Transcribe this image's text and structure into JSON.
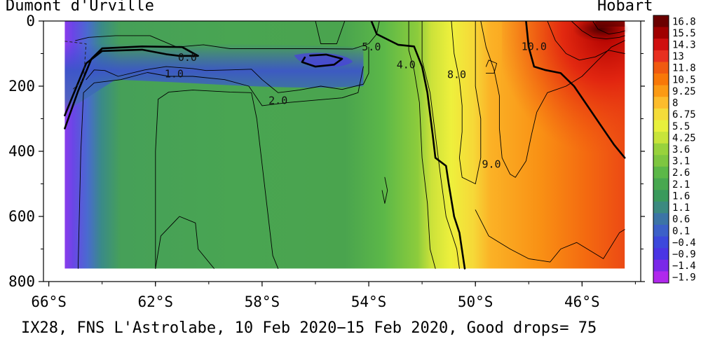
{
  "header": {
    "left_label": "Dumont d'Urville",
    "right_label": "Hobart"
  },
  "footer": {
    "caption": "IX28, FNS L'Astrolabe, 10 Feb 2020−15 Feb 2020, Good drops= 75"
  },
  "chart_data": {
    "type": "heatmap",
    "xlabel": "",
    "ylabel": "",
    "x_ticks": [
      "66°S",
      "62°S",
      "58°S",
      "54°S",
      "50°S",
      "46°S"
    ],
    "x_tick_values": [
      -66,
      -62,
      -58,
      -54,
      -50,
      -46
    ],
    "x_range": [
      -66.2,
      -43.8
    ],
    "y_ticks": [
      "0",
      "200",
      "400",
      "600",
      "800"
    ],
    "y_tick_values": [
      0,
      200,
      400,
      600,
      800
    ],
    "y_range": [
      800,
      0
    ],
    "data_lat_range": [
      -65.4,
      -44.4
    ],
    "data_depth_range": [
      0,
      760
    ],
    "colorbar": {
      "labels": [
        "16.8",
        "15.5",
        "14.3",
        "13",
        "11.8",
        "10.5",
        "9.25",
        "8",
        "6.75",
        "5.5",
        "4.25",
        "3.6",
        "3.1",
        "2.6",
        "2.1",
        "1.6",
        "1.1",
        "0.6",
        "0.1",
        "−0.4",
        "−0.9",
        "−1.4",
        "−1.9"
      ],
      "colors": [
        "#6b0000",
        "#a00000",
        "#d01010",
        "#e83020",
        "#f05a10",
        "#f87808",
        "#fb9a14",
        "#fcbc2c",
        "#f4dc3a",
        "#e8f03c",
        "#c8e43a",
        "#98d23c",
        "#7ec640",
        "#5cb848",
        "#48a850",
        "#3a9a5c",
        "#3c8a80",
        "#3c74a6",
        "#3c60c8",
        "#3c48dc",
        "#4a34e4",
        "#7a28e8",
        "#b028ec"
      ]
    },
    "contour_labels": [
      {
        "text": "0.0",
        "lat": -60.8,
        "depth": 112
      },
      {
        "text": "1.0",
        "lat": -61.3,
        "depth": 162
      },
      {
        "text": "2.0",
        "lat": -57.4,
        "depth": 244
      },
      {
        "text": "4.0",
        "lat": -52.6,
        "depth": 134
      },
      {
        "text": "5.0",
        "lat": -53.9,
        "depth": 80
      },
      {
        "text": "8.0",
        "lat": -50.7,
        "depth": 164
      },
      {
        "text": "9.0",
        "lat": -49.4,
        "depth": 440
      },
      {
        "text": "10.0",
        "lat": -47.8,
        "depth": 78
      }
    ],
    "series": [
      {
        "name": "",
        "points": [
          [
            -65.4,
            330
          ],
          [
            -64.9,
            215
          ],
          [
            -64.4,
            116
          ],
          [
            -64.0,
            84
          ],
          [
            -62.5,
            78
          ],
          [
            -61.0,
            80
          ],
          [
            -60.4,
            107
          ],
          [
            -61.1,
            107
          ],
          [
            -61.6,
            102
          ],
          [
            -62.5,
            88
          ],
          [
            -64.0,
            92
          ],
          [
            -64.6,
            130
          ],
          [
            -65.1,
            230
          ],
          [
            -65.4,
            290
          ]
        ]
      },
      {
        "name": "",
        "points": [
          [
            -56.2,
            106
          ],
          [
            -55.6,
            103
          ],
          [
            -55.0,
            116
          ],
          [
            -55.3,
            134
          ],
          [
            -56.0,
            140
          ],
          [
            -56.5,
            126
          ],
          [
            -56.4,
            112
          ]
        ]
      },
      {
        "name": "",
        "points": [
          [
            -53.9,
            0
          ],
          [
            -53.7,
            40
          ],
          [
            -52.9,
            73
          ],
          [
            -52.3,
            78
          ],
          [
            -52.0,
            140
          ],
          [
            -51.8,
            220
          ],
          [
            -51.6,
            350
          ],
          [
            -51.5,
            420
          ],
          [
            -51.1,
            445
          ],
          [
            -51.0,
            500
          ],
          [
            -50.8,
            600
          ],
          [
            -50.6,
            650
          ],
          [
            -50.4,
            760
          ]
        ]
      },
      {
        "name": "",
        "points": [
          [
            -48.1,
            0
          ],
          [
            -48.0,
            80
          ],
          [
            -47.8,
            140
          ],
          [
            -47.4,
            150
          ],
          [
            -46.8,
            160
          ],
          [
            -46.3,
            200
          ],
          [
            -45.8,
            260
          ],
          [
            -45.3,
            320
          ],
          [
            -44.8,
            380
          ],
          [
            -44.4,
            420
          ]
        ]
      },
      {
        "name": "",
        "points": [
          [
            -65.0,
            60
          ],
          [
            -64.5,
            50
          ],
          [
            -63.5,
            45
          ],
          [
            -62.2,
            45
          ],
          [
            -61.2,
            80
          ],
          [
            -60.2,
            73
          ],
          [
            -59.2,
            85
          ],
          [
            -58.0,
            85
          ],
          [
            -56.0,
            85
          ],
          [
            -54.6,
            86
          ],
          [
            -54.0,
            70
          ],
          [
            -53.7,
            40
          ],
          [
            -53.6,
            0
          ]
        ]
      },
      {
        "name": "",
        "points": [
          [
            -64.6,
            180
          ],
          [
            -64.3,
            150
          ],
          [
            -63.9,
            152
          ],
          [
            -63.4,
            170
          ],
          [
            -62.4,
            150
          ],
          [
            -61.6,
            140
          ],
          [
            -60.6,
            146
          ],
          [
            -60.1,
            152
          ],
          [
            -59.2,
            150
          ],
          [
            -58.4,
            148
          ],
          [
            -58.0,
            180
          ],
          [
            -57.4,
            220
          ],
          [
            -56.6,
            212
          ],
          [
            -55.8,
            200
          ],
          [
            -55.0,
            210
          ],
          [
            -54.2,
            194
          ],
          [
            -54.0,
            160
          ],
          [
            -54.0,
            80
          ]
        ]
      },
      {
        "name": "",
        "points": [
          [
            -64.9,
            760
          ],
          [
            -64.8,
            400
          ],
          [
            -64.7,
            220
          ],
          [
            -64.3,
            190
          ],
          [
            -63.3,
            180
          ],
          [
            -62.3,
            158
          ],
          [
            -61.5,
            170
          ],
          [
            -60.6,
            170
          ],
          [
            -59.4,
            180
          ],
          [
            -58.5,
            200
          ],
          [
            -58.0,
            260
          ],
          [
            -57.0,
            250
          ],
          [
            -55.0,
            236
          ],
          [
            -54.4,
            220
          ],
          [
            -54.2,
            140
          ]
        ]
      },
      {
        "name": "",
        "points": [
          [
            -62.0,
            760
          ],
          [
            -62.0,
            400
          ],
          [
            -61.9,
            240
          ],
          [
            -61.5,
            218
          ],
          [
            -60.6,
            212
          ],
          [
            -59.2,
            218
          ],
          [
            -58.4,
            220
          ],
          [
            -58.2,
            300
          ],
          [
            -57.6,
            720
          ],
          [
            -57.4,
            760
          ]
        ]
      },
      {
        "name": "",
        "points": [
          [
            -62.0,
            760
          ],
          [
            -61.8,
            660
          ],
          [
            -61.1,
            600
          ],
          [
            -60.5,
            620
          ],
          [
            -60.4,
            700
          ],
          [
            -59.8,
            760
          ]
        ]
      },
      {
        "name": "",
        "points": [
          [
            -52.5,
            0
          ],
          [
            -52.5,
            90
          ],
          [
            -52.3,
            150
          ],
          [
            -52.1,
            250
          ],
          [
            -52.0,
            420
          ],
          [
            -51.8,
            560
          ],
          [
            -51.7,
            700
          ],
          [
            -51.5,
            760
          ]
        ]
      },
      {
        "name": "",
        "points": [
          [
            -52.0,
            0
          ],
          [
            -52.0,
            120
          ],
          [
            -51.7,
            220
          ],
          [
            -51.5,
            350
          ],
          [
            -51.3,
            480
          ],
          [
            -51.1,
            600
          ],
          [
            -50.7,
            700
          ],
          [
            -50.6,
            760
          ]
        ]
      },
      {
        "name": "",
        "points": [
          [
            -50.9,
            0
          ],
          [
            -50.8,
            100
          ],
          [
            -50.6,
            180
          ],
          [
            -50.5,
            260
          ],
          [
            -50.5,
            340
          ],
          [
            -50.6,
            420
          ],
          [
            -50.5,
            480
          ],
          [
            -50.0,
            500
          ],
          [
            -49.8,
            420
          ],
          [
            -49.8,
            300
          ],
          [
            -50.0,
            200
          ],
          [
            -50.0,
            100
          ],
          [
            -50.0,
            0
          ]
        ]
      },
      {
        "name": "",
        "points": [
          [
            -49.8,
            0
          ],
          [
            -49.6,
            80
          ],
          [
            -49.3,
            150
          ],
          [
            -49.1,
            230
          ],
          [
            -49.1,
            330
          ],
          [
            -49.0,
            420
          ],
          [
            -48.7,
            470
          ],
          [
            -48.5,
            480
          ],
          [
            -48.1,
            430
          ],
          [
            -47.9,
            350
          ],
          [
            -47.7,
            280
          ],
          [
            -47.3,
            220
          ],
          [
            -46.6,
            200
          ],
          [
            -46.0,
            170
          ],
          [
            -45.4,
            120
          ],
          [
            -44.9,
            80
          ],
          [
            -44.4,
            60
          ]
        ]
      },
      {
        "name": "",
        "points": [
          [
            -50.0,
            580
          ],
          [
            -49.5,
            660
          ],
          [
            -48.7,
            700
          ],
          [
            -48.0,
            730
          ],
          [
            -47.2,
            740
          ],
          [
            -46.8,
            700
          ],
          [
            -46.2,
            680
          ],
          [
            -45.2,
            730
          ],
          [
            -44.6,
            650
          ],
          [
            -44.4,
            640
          ]
        ]
      },
      {
        "name": "",
        "points": [
          [
            -47.3,
            0
          ],
          [
            -47.0,
            60
          ],
          [
            -46.6,
            100
          ],
          [
            -46.1,
            120
          ],
          [
            -45.5,
            110
          ],
          [
            -45.0,
            90
          ],
          [
            -44.4,
            100
          ]
        ]
      },
      {
        "name": "",
        "points": [
          [
            -46.4,
            0
          ],
          [
            -46.0,
            30
          ],
          [
            -45.6,
            50
          ],
          [
            -45.1,
            55
          ],
          [
            -44.6,
            50
          ],
          [
            -44.4,
            45
          ]
        ]
      },
      {
        "name": "",
        "points": [
          [
            -45.6,
            0
          ],
          [
            -45.4,
            25
          ],
          [
            -45.0,
            40
          ],
          [
            -44.6,
            35
          ],
          [
            -44.4,
            30
          ]
        ]
      },
      {
        "name": "",
        "points": [
          [
            -49.6,
            140
          ],
          [
            -49.5,
            120
          ],
          [
            -49.2,
            130
          ],
          [
            -49.3,
            160
          ],
          [
            -49.6,
            160
          ]
        ]
      },
      {
        "name": "",
        "points": [
          [
            -56.0,
            0
          ],
          [
            -55.8,
            70
          ],
          [
            -55.2,
            70
          ],
          [
            -54.9,
            0
          ]
        ]
      },
      {
        "name": "",
        "points": [
          [
            -53.4,
            480
          ],
          [
            -53.3,
            520
          ],
          [
            -53.4,
            560
          ],
          [
            -53.5,
            520
          ]
        ]
      }
    ]
  }
}
